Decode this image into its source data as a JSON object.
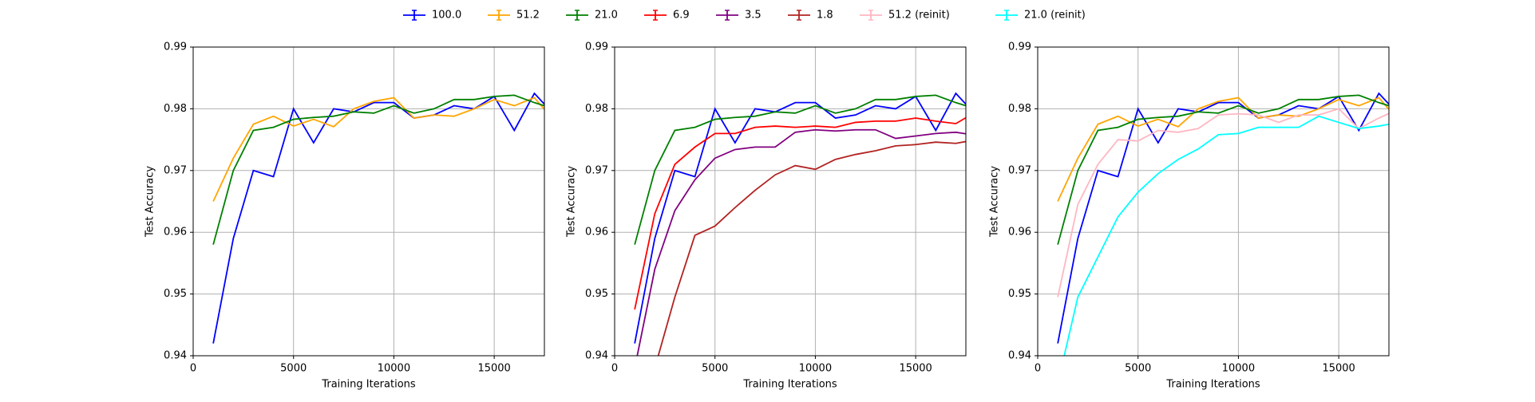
{
  "chart_data": [
    {
      "type": "line",
      "xlabel": "Training Iterations",
      "ylabel": "Test Accuracy",
      "x": [
        1000,
        2000,
        3000,
        4000,
        5000,
        6000,
        7000,
        8000,
        9000,
        10000,
        11000,
        12000,
        13000,
        14000,
        15000,
        16000,
        17000,
        18000
      ],
      "xlim": [
        0,
        17500
      ],
      "ylim": [
        0.94,
        0.99
      ],
      "xticks": [
        0,
        5000,
        10000,
        15000
      ],
      "yticks": [
        0.94,
        0.95,
        0.96,
        0.97,
        0.98,
        0.99
      ],
      "grid": true,
      "series": [
        {
          "name": "100.0",
          "color": "#0000ff",
          "values": [
            0.942,
            0.959,
            0.97,
            0.969,
            0.98,
            0.9745,
            0.98,
            0.9795,
            0.981,
            0.981,
            0.9785,
            0.979,
            0.9805,
            0.98,
            0.982,
            0.9765,
            0.9825,
            0.979
          ]
        },
        {
          "name": "51.2",
          "color": "#ffa500",
          "values": [
            0.965,
            0.972,
            0.9775,
            0.9788,
            0.9772,
            0.9783,
            0.9771,
            0.98,
            0.9812,
            0.9818,
            0.9785,
            0.979,
            0.9788,
            0.98,
            0.9815,
            0.9805,
            0.9818,
            0.978
          ]
        },
        {
          "name": "21.0",
          "color": "#008000",
          "values": [
            0.958,
            0.97,
            0.9765,
            0.977,
            0.9783,
            0.9786,
            0.9788,
            0.9795,
            0.9793,
            0.9805,
            0.9793,
            0.98,
            0.9815,
            0.9815,
            0.982,
            0.9822,
            0.981,
            0.98
          ]
        }
      ]
    },
    {
      "type": "line",
      "xlabel": "Training Iterations",
      "ylabel": "Test Accuracy",
      "x": [
        1000,
        2000,
        3000,
        4000,
        5000,
        6000,
        7000,
        8000,
        9000,
        10000,
        11000,
        12000,
        13000,
        14000,
        15000,
        16000,
        17000,
        18000
      ],
      "xlim": [
        0,
        17500
      ],
      "ylim": [
        0.94,
        0.99
      ],
      "xticks": [
        0,
        5000,
        10000,
        15000
      ],
      "yticks": [
        0.94,
        0.95,
        0.96,
        0.97,
        0.98,
        0.99
      ],
      "grid": true,
      "series": [
        {
          "name": "100.0",
          "color": "#0000ff",
          "values": [
            0.942,
            0.959,
            0.97,
            0.969,
            0.98,
            0.9745,
            0.98,
            0.9795,
            0.981,
            0.981,
            0.9785,
            0.979,
            0.9805,
            0.98,
            0.982,
            0.9765,
            0.9825,
            0.979
          ]
        },
        {
          "name": "21.0",
          "color": "#008000",
          "values": [
            0.958,
            0.97,
            0.9765,
            0.977,
            0.9783,
            0.9786,
            0.9788,
            0.9795,
            0.9793,
            0.9805,
            0.9793,
            0.98,
            0.9815,
            0.9815,
            0.982,
            0.9822,
            0.981,
            0.98
          ]
        },
        {
          "name": "6.9",
          "color": "#ff0000",
          "values": [
            0.9475,
            0.963,
            0.971,
            0.9738,
            0.976,
            0.976,
            0.977,
            0.9772,
            0.977,
            0.9772,
            0.977,
            0.9778,
            0.978,
            0.978,
            0.9785,
            0.978,
            0.9776,
            0.9795
          ]
        },
        {
          "name": "3.5",
          "color": "#800080",
          "values": [
            0.938,
            0.954,
            0.9635,
            0.9685,
            0.972,
            0.9734,
            0.9738,
            0.9738,
            0.9762,
            0.9766,
            0.9764,
            0.9766,
            0.9766,
            0.9752,
            0.9756,
            0.976,
            0.9762,
            0.9757
          ]
        },
        {
          "name": "1.8",
          "color": "#b22222",
          "values": [
            0.93,
            0.938,
            0.9495,
            0.9595,
            0.961,
            0.964,
            0.9668,
            0.9693,
            0.9708,
            0.9702,
            0.9718,
            0.9726,
            0.9732,
            0.974,
            0.9742,
            0.9746,
            0.9744,
            0.975
          ]
        }
      ]
    },
    {
      "type": "line",
      "xlabel": "Training Iterations",
      "ylabel": "Test Accuracy",
      "x": [
        1000,
        2000,
        3000,
        4000,
        5000,
        6000,
        7000,
        8000,
        9000,
        10000,
        11000,
        12000,
        13000,
        14000,
        15000,
        16000,
        17000,
        18000
      ],
      "xlim": [
        0,
        17500
      ],
      "ylim": [
        0.94,
        0.99
      ],
      "xticks": [
        0,
        5000,
        10000,
        15000
      ],
      "yticks": [
        0.94,
        0.95,
        0.96,
        0.97,
        0.98,
        0.99
      ],
      "grid": true,
      "series": [
        {
          "name": "100.0",
          "color": "#0000ff",
          "values": [
            0.942,
            0.959,
            0.97,
            0.969,
            0.98,
            0.9745,
            0.98,
            0.9795,
            0.981,
            0.981,
            0.9785,
            0.979,
            0.9805,
            0.98,
            0.982,
            0.9765,
            0.9825,
            0.979
          ]
        },
        {
          "name": "51.2",
          "color": "#ffa500",
          "values": [
            0.965,
            0.972,
            0.9775,
            0.9788,
            0.9772,
            0.9783,
            0.9771,
            0.98,
            0.9812,
            0.9818,
            0.9785,
            0.979,
            0.9788,
            0.98,
            0.9815,
            0.9805,
            0.9818,
            0.978
          ]
        },
        {
          "name": "21.0",
          "color": "#008000",
          "values": [
            0.958,
            0.97,
            0.9765,
            0.977,
            0.9783,
            0.9786,
            0.9788,
            0.9795,
            0.9793,
            0.9805,
            0.9793,
            0.98,
            0.9815,
            0.9815,
            0.982,
            0.9822,
            0.981,
            0.98
          ]
        },
        {
          "name": "51.2 (reinit)",
          "color": "#ffb6c1",
          "values": [
            0.9495,
            0.9645,
            0.971,
            0.975,
            0.9748,
            0.9765,
            0.9762,
            0.9768,
            0.979,
            0.9792,
            0.979,
            0.9778,
            0.979,
            0.979,
            0.98,
            0.9768,
            0.9785,
            0.98
          ]
        },
        {
          "name": "21.0 (reinit)",
          "color": "#00ffff",
          "values": [
            0.9355,
            0.9495,
            0.956,
            0.9625,
            0.9665,
            0.9695,
            0.9718,
            0.9735,
            0.9758,
            0.976,
            0.977,
            0.977,
            0.977,
            0.9788,
            0.9778,
            0.9768,
            0.9772,
            0.9778
          ]
        }
      ]
    }
  ]
}
